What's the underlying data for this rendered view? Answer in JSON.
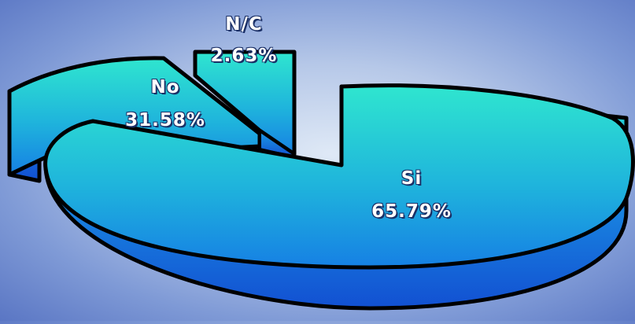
{
  "chart_data": {
    "type": "pie",
    "style": "3d-exploded",
    "slices": [
      {
        "label": "Si",
        "value": 65.79,
        "value_label": "65.79%",
        "color": "#1fb8d9"
      },
      {
        "label": "No",
        "value": 31.58,
        "value_label": "31.58%",
        "color": "#1fb8d9"
      },
      {
        "label": "N/C",
        "value": 2.63,
        "value_label": "2.63%",
        "color": "#1fb8d9"
      }
    ],
    "colors": {
      "top_light": "#2fe0d4",
      "top_dark": "#1a7fe0",
      "side": "#1460d8",
      "outline": "#000000"
    }
  }
}
